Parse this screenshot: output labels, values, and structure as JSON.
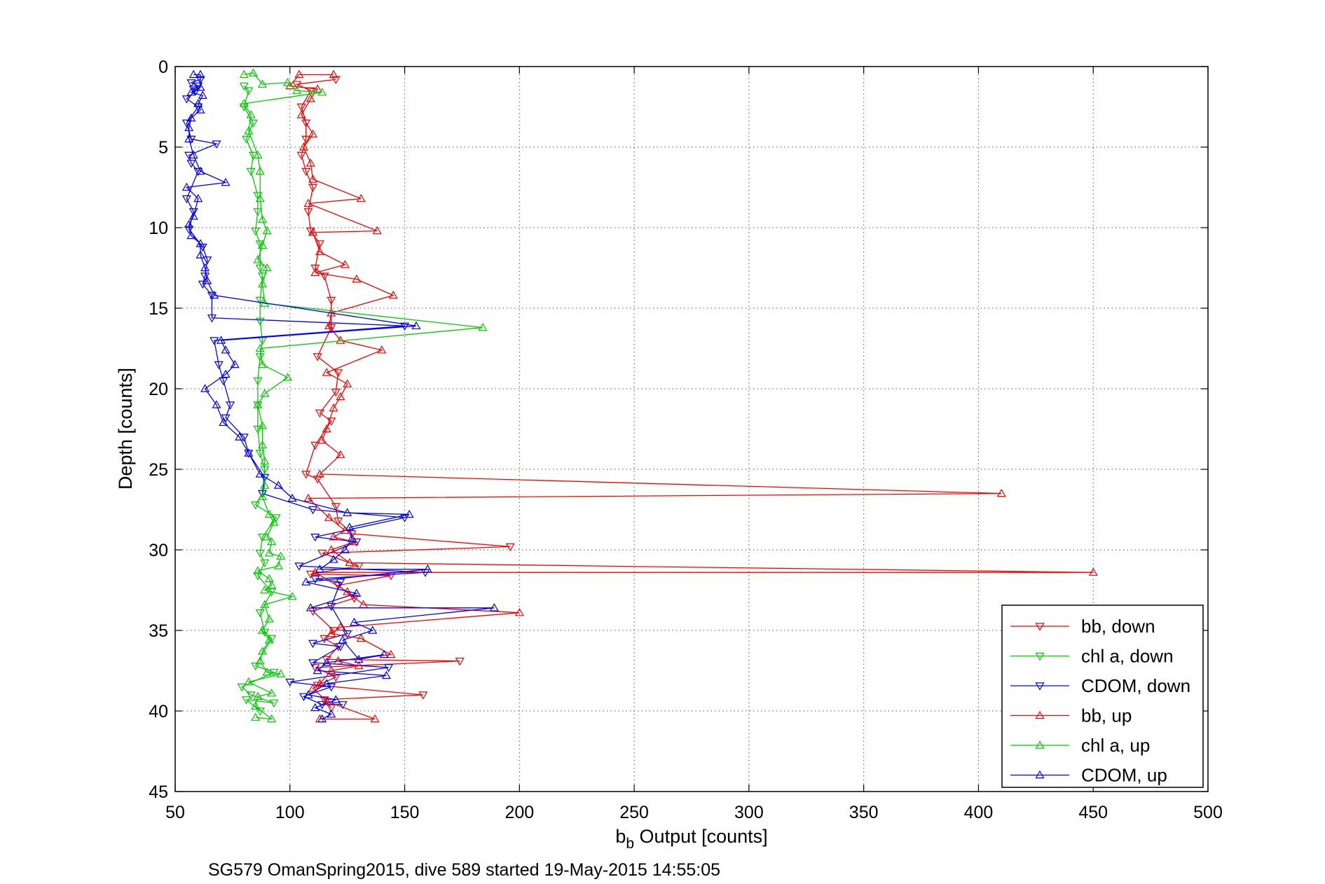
{
  "chart_data": {
    "type": "line",
    "title": "",
    "xlabel": {
      "base": "b",
      "subscript": "b",
      "rest": " Output [counts]"
    },
    "ylabel": "Depth [counts]",
    "caption": "SG579 OmanSpring2015, dive 589 started 19-May-2015 14:55:05",
    "xlim": [
      50,
      500
    ],
    "ylim": [
      0,
      45
    ],
    "y_reversed": true,
    "x_ticks": [
      "50",
      "100",
      "150",
      "200",
      "250",
      "300",
      "350",
      "400",
      "450",
      "500"
    ],
    "y_ticks": [
      "0",
      "5",
      "10",
      "15",
      "20",
      "25",
      "30",
      "35",
      "40",
      "45"
    ],
    "grid": true,
    "legend_position": "bottom-right",
    "series": [
      {
        "name": "bb, down",
        "color": "#ff0000",
        "marker": "triangle-down",
        "points": [
          [
            120,
            0.8
          ],
          [
            103,
            1.1
          ],
          [
            109,
            1.5
          ],
          [
            105,
            2.5
          ],
          [
            107,
            3.5
          ],
          [
            107,
            4.5
          ],
          [
            105,
            5.5
          ],
          [
            107,
            6.5
          ],
          [
            110,
            7.5
          ],
          [
            108,
            9
          ],
          [
            109,
            10.2
          ],
          [
            113,
            11
          ],
          [
            111,
            12.5
          ],
          [
            115,
            13
          ],
          [
            118,
            14.5
          ],
          [
            118,
            16.2
          ],
          [
            112,
            18
          ],
          [
            121,
            19
          ],
          [
            120,
            20.2
          ],
          [
            113,
            21.5
          ],
          [
            118,
            22
          ],
          [
            111,
            23.5
          ],
          [
            107,
            25.3
          ],
          [
            112,
            25.6
          ],
          [
            120,
            27.3
          ],
          [
            121,
            28.2
          ],
          [
            127,
            29
          ],
          [
            196,
            29.8
          ],
          [
            114,
            30.2
          ],
          [
            130,
            31
          ],
          [
            109,
            31.5
          ],
          [
            144,
            31.6
          ],
          [
            121,
            32.2
          ],
          [
            128,
            33
          ],
          [
            110,
            33.8
          ],
          [
            119,
            35
          ],
          [
            115,
            35.5
          ],
          [
            121,
            36
          ],
          [
            116,
            36.8
          ],
          [
            174,
            36.9
          ],
          [
            111,
            37.3
          ],
          [
            120,
            37.9
          ],
          [
            112,
            38.4
          ],
          [
            158,
            39
          ],
          [
            115,
            39.3
          ],
          [
            118,
            39.8
          ]
        ]
      },
      {
        "name": "chl a, down",
        "color": "#00cc00",
        "marker": "triangle-down",
        "points": [
          [
            80,
            1.2
          ],
          [
            82,
            1.5
          ],
          [
            80,
            2.5
          ],
          [
            84,
            3.5
          ],
          [
            81,
            4.5
          ],
          [
            84,
            5.5
          ],
          [
            83,
            6.5
          ],
          [
            86,
            8
          ],
          [
            86,
            9
          ],
          [
            85,
            10.2
          ],
          [
            87,
            11
          ],
          [
            87,
            12.5
          ],
          [
            88,
            13
          ],
          [
            87,
            14.5
          ],
          [
            87,
            15.8
          ],
          [
            88,
            17
          ],
          [
            87,
            18
          ],
          [
            86,
            19.5
          ],
          [
            86,
            21
          ],
          [
            86,
            22.5
          ],
          [
            87,
            24
          ],
          [
            89,
            25
          ],
          [
            88,
            26.5
          ],
          [
            85,
            27.2
          ],
          [
            94,
            28
          ],
          [
            88,
            29.2
          ],
          [
            87,
            30.2
          ],
          [
            89,
            30.8
          ],
          [
            86,
            31.6
          ],
          [
            92,
            32.6
          ],
          [
            87,
            33.9
          ],
          [
            89,
            35.1
          ],
          [
            92,
            35.5
          ],
          [
            85,
            37.2
          ],
          [
            93,
            37.6
          ],
          [
            79,
            38.5
          ],
          [
            83,
            39
          ],
          [
            93,
            39.5
          ],
          [
            81,
            39.3
          ],
          [
            87,
            40
          ]
        ]
      },
      {
        "name": "CDOM, down",
        "color": "#0000ff",
        "marker": "triangle-down",
        "points": [
          [
            61,
            0.8
          ],
          [
            57,
            1
          ],
          [
            60,
            1.2
          ],
          [
            58,
            1.4
          ],
          [
            59,
            1.5
          ],
          [
            55,
            2
          ],
          [
            60,
            2.5
          ],
          [
            55,
            3.5
          ],
          [
            57,
            4.5
          ],
          [
            68,
            4.8
          ],
          [
            56,
            5.5
          ],
          [
            57,
            6
          ],
          [
            60,
            6.5
          ],
          [
            55,
            8.2
          ],
          [
            58,
            9
          ],
          [
            56,
            10.1
          ],
          [
            62,
            11.2
          ],
          [
            64,
            12
          ],
          [
            63,
            13
          ],
          [
            62,
            13.5
          ],
          [
            66,
            14.2
          ],
          [
            66,
            15.6
          ],
          [
            150,
            16.1
          ],
          [
            67,
            17
          ],
          [
            69,
            18.5
          ],
          [
            71,
            19.5
          ],
          [
            74,
            21
          ],
          [
            72,
            21.8
          ],
          [
            80,
            23
          ],
          [
            82,
            24
          ],
          [
            89,
            25.5
          ],
          [
            88,
            26.5
          ],
          [
            110,
            27.5
          ],
          [
            150,
            28
          ],
          [
            111,
            29.2
          ],
          [
            129,
            29.5
          ],
          [
            104,
            31
          ],
          [
            159,
            31.4
          ],
          [
            111,
            31.8
          ],
          [
            122,
            32
          ],
          [
            118,
            33.5
          ],
          [
            125,
            35.2
          ],
          [
            110,
            35.8
          ],
          [
            122,
            36
          ],
          [
            110,
            37
          ],
          [
            143,
            37.3
          ],
          [
            100,
            38.2
          ],
          [
            118,
            38.5
          ],
          [
            106,
            39.1
          ],
          [
            114,
            39.6
          ],
          [
            123,
            39.6
          ]
        ]
      },
      {
        "name": "bb, up",
        "color": "#ff0000",
        "marker": "triangle-up",
        "points": [
          [
            119,
            0.5
          ],
          [
            104,
            0.5
          ],
          [
            100,
            1.2
          ],
          [
            112,
            1.4
          ],
          [
            109,
            2
          ],
          [
            105,
            3
          ],
          [
            110,
            4.2
          ],
          [
            106,
            5
          ],
          [
            109,
            6
          ],
          [
            110,
            7
          ],
          [
            131,
            8.2
          ],
          [
            108,
            8.5
          ],
          [
            138,
            10.2
          ],
          [
            110,
            10.3
          ],
          [
            113,
            11.5
          ],
          [
            124,
            12.3
          ],
          [
            111,
            12.8
          ],
          [
            129,
            13.2
          ],
          [
            145,
            14.2
          ],
          [
            118,
            15.3
          ],
          [
            117,
            16.1
          ],
          [
            122,
            17
          ],
          [
            140,
            17.6
          ],
          [
            116,
            19
          ],
          [
            125,
            19.7
          ],
          [
            122,
            20.5
          ],
          [
            119,
            21.2
          ],
          [
            116,
            22.5
          ],
          [
            114,
            23.2
          ],
          [
            122,
            24.1
          ],
          [
            113,
            25.3
          ],
          [
            410,
            26.5
          ],
          [
            108,
            26.8
          ],
          [
            117,
            28
          ],
          [
            124,
            28.8
          ],
          [
            119,
            29.2
          ],
          [
            128,
            29.5
          ],
          [
            118,
            30
          ],
          [
            126,
            30.8
          ],
          [
            450,
            31.4
          ],
          [
            111,
            31.4
          ],
          [
            125,
            32.6
          ],
          [
            132,
            33.4
          ],
          [
            200,
            33.9
          ],
          [
            122,
            34.8
          ],
          [
            118,
            35.2
          ],
          [
            131,
            35.5
          ],
          [
            144,
            36.5
          ],
          [
            121,
            36.9
          ],
          [
            130,
            37.2
          ],
          [
            118,
            37.5
          ],
          [
            113,
            38.3
          ],
          [
            110,
            38.6
          ],
          [
            116,
            39.4
          ],
          [
            137,
            40.5
          ],
          [
            113,
            40.5
          ]
        ]
      },
      {
        "name": "chl a, up",
        "color": "#00cc00",
        "marker": "triangle-up",
        "points": [
          [
            80,
            0.5
          ],
          [
            84,
            0.4
          ],
          [
            88,
            1.1
          ],
          [
            99,
            1
          ],
          [
            103,
            1.5
          ],
          [
            114,
            1.6
          ],
          [
            80,
            2.3
          ],
          [
            83,
            3
          ],
          [
            82,
            4
          ],
          [
            86,
            5.5
          ],
          [
            87,
            6.5
          ],
          [
            87,
            8.2
          ],
          [
            88,
            9.5
          ],
          [
            90,
            10.2
          ],
          [
            88,
            11.1
          ],
          [
            86,
            12
          ],
          [
            90,
            12.5
          ],
          [
            88,
            13.5
          ],
          [
            89,
            14.7
          ],
          [
            184,
            16.2
          ],
          [
            87,
            17.5
          ],
          [
            88,
            18.5
          ],
          [
            99,
            19.3
          ],
          [
            89,
            20.3
          ],
          [
            86,
            21
          ],
          [
            88,
            22.3
          ],
          [
            88,
            23.5
          ],
          [
            89,
            24.5
          ],
          [
            89,
            26
          ],
          [
            88,
            26.7
          ],
          [
            91,
            27.8
          ],
          [
            93,
            28.3
          ],
          [
            90,
            29.2
          ],
          [
            92,
            29.5
          ],
          [
            91,
            30.2
          ],
          [
            96,
            30.4
          ],
          [
            95,
            31
          ],
          [
            86,
            31.3
          ],
          [
            91,
            31.8
          ],
          [
            92,
            32.2
          ],
          [
            89,
            32.5
          ],
          [
            101,
            32.9
          ],
          [
            89,
            33.4
          ],
          [
            91,
            34.3
          ],
          [
            88,
            35
          ],
          [
            91,
            35.6
          ],
          [
            88,
            36.3
          ],
          [
            87,
            36.9
          ],
          [
            90,
            37.6
          ],
          [
            96,
            37.7
          ],
          [
            82,
            38.2
          ],
          [
            92,
            38.9
          ],
          [
            86,
            39.1
          ],
          [
            85,
            39.7
          ],
          [
            92,
            40.5
          ],
          [
            85,
            40.4
          ]
        ]
      },
      {
        "name": "CDOM, up",
        "color": "#0000ff",
        "marker": "triangle-up",
        "points": [
          [
            58,
            0.5
          ],
          [
            61,
            0.5
          ],
          [
            61,
            1.3
          ],
          [
            57,
            1.6
          ],
          [
            62,
            1.8
          ],
          [
            60,
            2.3
          ],
          [
            61,
            2.7
          ],
          [
            57,
            3.2
          ],
          [
            56,
            3.8
          ],
          [
            56,
            4.5
          ],
          [
            58,
            5.5
          ],
          [
            61,
            6.5
          ],
          [
            72,
            7.2
          ],
          [
            55,
            7.5
          ],
          [
            60,
            8.2
          ],
          [
            58,
            9.3
          ],
          [
            56,
            9.8
          ],
          [
            57,
            10.5
          ],
          [
            61,
            11
          ],
          [
            61,
            11.7
          ],
          [
            63,
            12.5
          ],
          [
            64,
            13.3
          ],
          [
            67,
            14.2
          ],
          [
            155,
            16.1
          ],
          [
            70,
            17
          ],
          [
            72,
            17.6
          ],
          [
            76,
            18.5
          ],
          [
            72,
            19.1
          ],
          [
            63,
            20
          ],
          [
            68,
            21
          ],
          [
            71,
            22.1
          ],
          [
            78,
            23
          ],
          [
            82,
            24
          ],
          [
            87,
            25.3
          ],
          [
            95,
            26
          ],
          [
            101,
            26.8
          ],
          [
            125,
            27.7
          ],
          [
            152,
            27.8
          ],
          [
            126,
            28.6
          ],
          [
            127,
            29.3
          ],
          [
            124,
            30
          ],
          [
            119,
            30.6
          ],
          [
            113,
            31.2
          ],
          [
            160,
            31.2
          ],
          [
            107,
            32
          ],
          [
            129,
            32.7
          ],
          [
            109,
            33.6
          ],
          [
            189,
            33.6
          ],
          [
            128,
            34.5
          ],
          [
            136,
            35
          ],
          [
            123,
            35.6
          ],
          [
            130,
            36.8
          ],
          [
            141,
            36.5
          ],
          [
            116,
            37
          ],
          [
            112,
            37.5
          ],
          [
            142,
            37.8
          ],
          [
            116,
            38.3
          ],
          [
            108,
            39
          ],
          [
            120,
            39.3
          ],
          [
            111,
            39.8
          ],
          [
            118,
            40.2
          ],
          [
            114,
            40.5
          ]
        ]
      }
    ]
  }
}
